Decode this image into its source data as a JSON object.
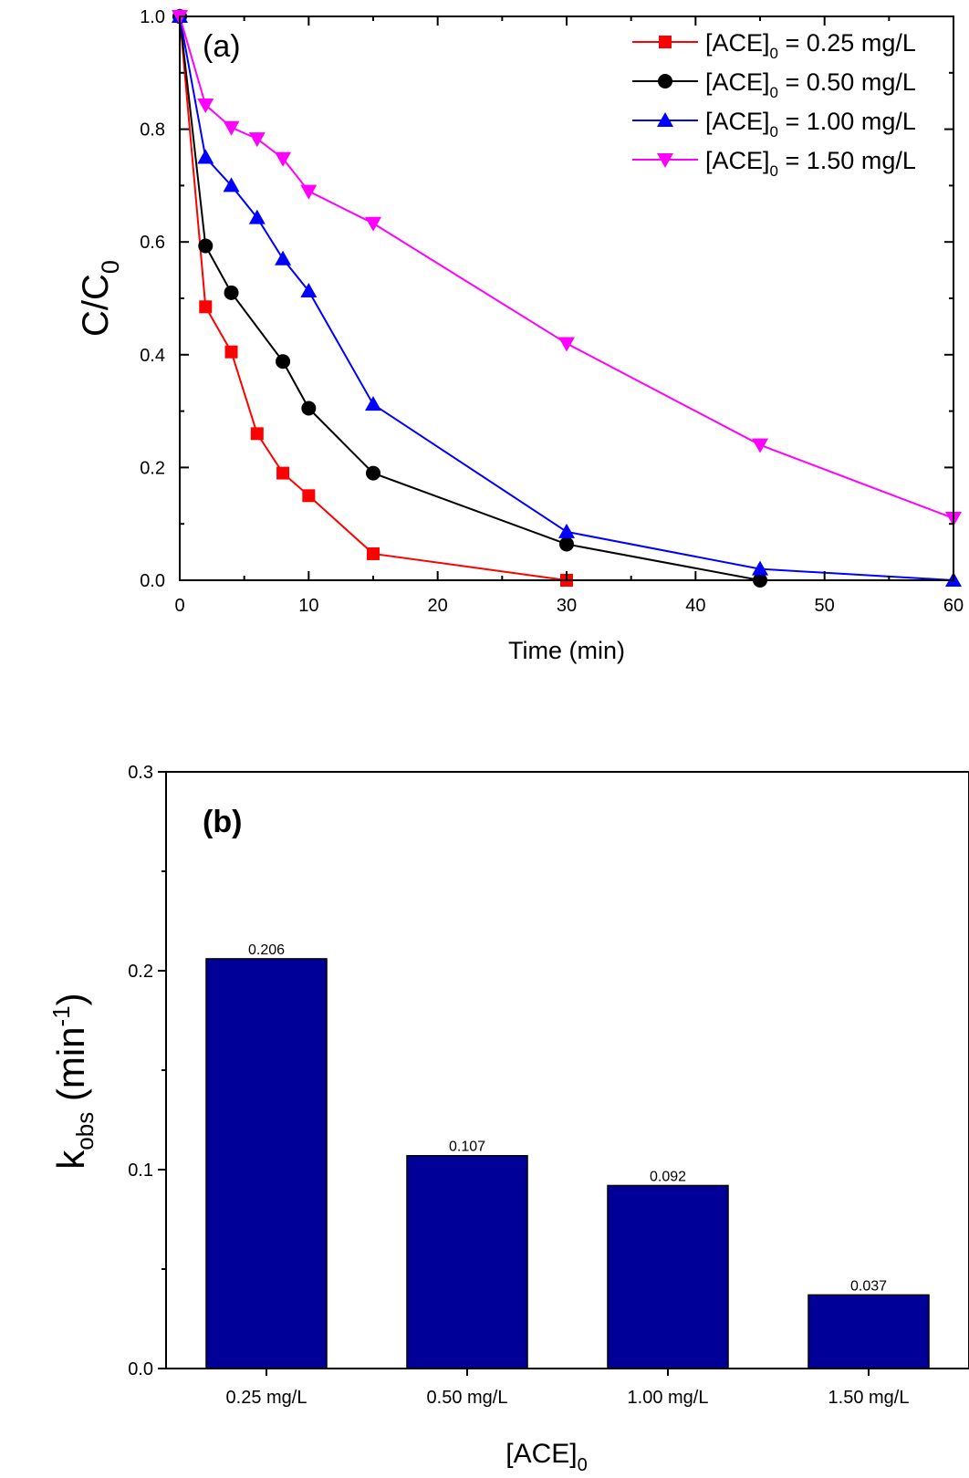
{
  "chart_data": [
    {
      "type": "line",
      "panel_label": "(a)",
      "title": "",
      "xlabel": "Time (min)",
      "ylabel": {
        "main": "C/C",
        "sub": "0"
      },
      "xlim": [
        0,
        60
      ],
      "ylim": [
        0,
        1.0
      ],
      "x_ticks": [
        0,
        10,
        20,
        30,
        40,
        50,
        60
      ],
      "y_ticks": [
        0.0,
        0.2,
        0.4,
        0.6,
        0.8,
        1.0
      ],
      "grid": false,
      "legend_position": "top-right",
      "series": [
        {
          "name": "[ACE]0 = 0.25 mg/L",
          "label_pre": "[ACE]",
          "label_sub": "0",
          "label_post": " = 0.25 mg/L",
          "color": "#ff0000",
          "marker": "square",
          "x": [
            0,
            2,
            4,
            6,
            8,
            10,
            15,
            30
          ],
          "y": [
            1.0,
            0.485,
            0.405,
            0.26,
            0.19,
            0.15,
            0.047,
            0.0
          ]
        },
        {
          "name": "[ACE]0 = 0.50 mg/L",
          "label_pre": "[ACE]",
          "label_sub": "0",
          "label_post": " = 0.50 mg/L",
          "color": "#000000",
          "marker": "circle",
          "x": [
            0,
            2,
            4,
            8,
            10,
            15,
            30,
            45
          ],
          "y": [
            1.0,
            0.593,
            0.51,
            0.388,
            0.305,
            0.19,
            0.064,
            0.0
          ]
        },
        {
          "name": "[ACE]0 = 1.00 mg/L",
          "label_pre": "[ACE]",
          "label_sub": "0",
          "label_post": " = 1.00 mg/L",
          "color": "#0000ff",
          "marker": "triangle-up",
          "x": [
            0,
            2,
            4,
            6,
            8,
            10,
            15,
            30,
            45,
            60
          ],
          "y": [
            1.0,
            0.75,
            0.7,
            0.643,
            0.57,
            0.513,
            0.312,
            0.086,
            0.02,
            0.0
          ]
        },
        {
          "name": "[ACE]0 = 1.50 mg/L",
          "label_pre": "[ACE]",
          "label_sub": "0",
          "label_post": " = 1.50 mg/L",
          "color": "#ff00ff",
          "marker": "triangle-down",
          "x": [
            0,
            2,
            4,
            6,
            8,
            10,
            15,
            30,
            45,
            60
          ],
          "y": [
            1.0,
            0.843,
            0.803,
            0.783,
            0.748,
            0.69,
            0.633,
            0.42,
            0.24,
            0.11
          ]
        }
      ]
    },
    {
      "type": "bar",
      "panel_label": "(b)",
      "title": "",
      "xlabel": {
        "main": "[ACE]",
        "sub": "0"
      },
      "ylabel": {
        "main": "k",
        "sub": "obs",
        "post": " (min",
        "sup": "-1",
        "end": ")"
      },
      "ylim": [
        0,
        0.3
      ],
      "y_ticks": [
        0.0,
        0.1,
        0.2,
        0.3
      ],
      "y_minor_step": 0.05,
      "categories": [
        "0.25 mg/L",
        "0.50 mg/L",
        "1.00 mg/L",
        "1.50 mg/L"
      ],
      "values": [
        0.206,
        0.107,
        0.092,
        0.037
      ],
      "data_labels": [
        "0.206",
        "0.107",
        "0.092",
        "0.037"
      ],
      "bar_color": "#000099",
      "grid": false
    }
  ]
}
